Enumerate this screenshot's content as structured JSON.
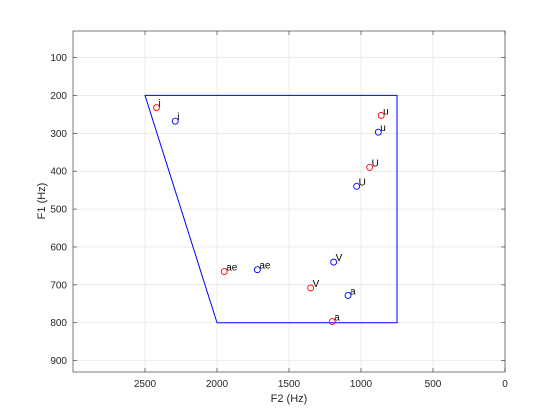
{
  "chart_data": {
    "type": "scatter",
    "title": "",
    "xlabel": "F2 (Hz)",
    "ylabel": "F1 (Hz)",
    "xlim": [
      3000,
      0
    ],
    "ylim": [
      930,
      30
    ],
    "x_reversed": true,
    "y_reversed": true,
    "grid": true,
    "x_ticks": [
      {
        "value": 2500,
        "label": "2500"
      },
      {
        "value": 2000,
        "label": "2000"
      },
      {
        "value": 1500,
        "label": "1500"
      },
      {
        "value": 1000,
        "label": "1000"
      },
      {
        "value": 500,
        "label": "500"
      },
      {
        "value": 0,
        "label": "0"
      }
    ],
    "y_ticks": [
      {
        "value": 100,
        "label": "100"
      },
      {
        "value": 200,
        "label": "200"
      },
      {
        "value": 300,
        "label": "300"
      },
      {
        "value": 400,
        "label": "400"
      },
      {
        "value": 500,
        "label": "500"
      },
      {
        "value": 600,
        "label": "600"
      },
      {
        "value": 700,
        "label": "700"
      },
      {
        "value": 800,
        "label": "800"
      },
      {
        "value": 900,
        "label": "900"
      }
    ],
    "vowel_space": {
      "color": "#0000ff",
      "points": [
        [
          2500,
          200
        ],
        [
          750,
          200
        ],
        [
          750,
          800
        ],
        [
          2000,
          800
        ]
      ]
    },
    "series": [
      {
        "color": "#ff0000",
        "marker": "circle",
        "points": [
          {
            "x": 2420,
            "y": 232,
            "label": "i"
          },
          {
            "x": 860,
            "y": 253,
            "label": "u"
          },
          {
            "x": 940,
            "y": 390,
            "label": "U"
          },
          {
            "x": 1950,
            "y": 665,
            "label": "ae"
          },
          {
            "x": 1350,
            "y": 708,
            "label": "V"
          },
          {
            "x": 1200,
            "y": 797,
            "label": "a"
          }
        ]
      },
      {
        "color": "#0000ff",
        "marker": "circle",
        "points": [
          {
            "x": 2290,
            "y": 268,
            "label": "i"
          },
          {
            "x": 880,
            "y": 297,
            "label": "u"
          },
          {
            "x": 1030,
            "y": 440,
            "label": "U"
          },
          {
            "x": 1720,
            "y": 660,
            "label": "ae"
          },
          {
            "x": 1190,
            "y": 640,
            "label": "V"
          },
          {
            "x": 1090,
            "y": 728,
            "label": "a"
          }
        ]
      }
    ]
  }
}
